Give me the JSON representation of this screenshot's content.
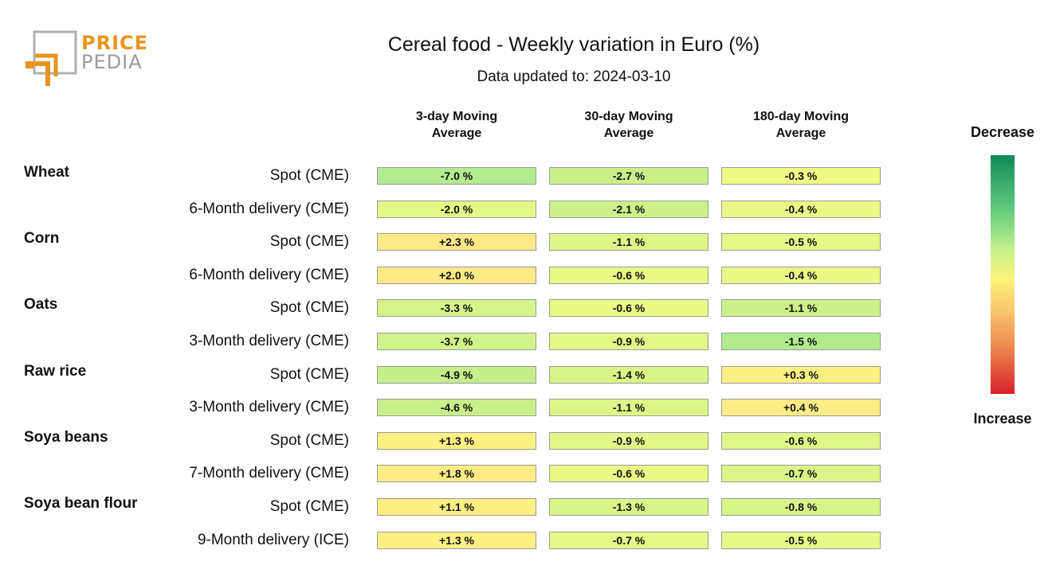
{
  "logo": {
    "line1": "PRICE",
    "line2": "PEDIA",
    "colors": {
      "orange": "#e8941e",
      "gray": "#9a9a9a"
    }
  },
  "title": "Cereal food - Weekly variation in Euro (%)",
  "subtitle": "Data updated to: 2024-03-10",
  "legend": {
    "top": "Decrease",
    "bottom": "Increase",
    "colors": [
      "#108a5a",
      "#5fc97c",
      "#c6f28a",
      "#fff27a",
      "#f7c36b",
      "#ee8a4f",
      "#d8202a"
    ]
  },
  "chart_data": {
    "type": "table",
    "title": "Cereal food - Weekly variation in Euro (%)",
    "subtitle": "Data updated to: 2024-03-10",
    "columns": [
      {
        "line1": "3-day Moving",
        "line2": "Average"
      },
      {
        "line1": "30-day Moving",
        "line2": "Average"
      },
      {
        "line1": "180-day Moving",
        "line2": "Average"
      }
    ],
    "groups": [
      {
        "name": "Wheat",
        "rows": [
          {
            "label": "Spot (CME)",
            "values": [
              "-7.0 %",
              "-2.7 %",
              "-0.3 %"
            ],
            "colors": [
              "#b2ec8e",
              "#c8f08a",
              "#eefa85"
            ]
          },
          {
            "label": "6-Month delivery (CME)",
            "values": [
              "-2.0 %",
              "-2.1 %",
              "-0.4 %"
            ],
            "colors": [
              "#e4f887",
              "#cdf189",
              "#eaf986"
            ]
          }
        ]
      },
      {
        "name": "Corn",
        "rows": [
          {
            "label": "Spot (CME)",
            "values": [
              "+2.3 %",
              "-1.1 %",
              "-0.5 %"
            ],
            "colors": [
              "#fde887",
              "#def688",
              "#e6f887"
            ]
          },
          {
            "label": "6-Month delivery (CME)",
            "values": [
              "+2.0 %",
              "-0.6 %",
              "-0.4 %"
            ],
            "colors": [
              "#fdea86",
              "#eafa86",
              "#eaf986"
            ]
          }
        ]
      },
      {
        "name": "Oats",
        "rows": [
          {
            "label": "Spot (CME)",
            "values": [
              "-3.3 %",
              "-0.6 %",
              "-1.1 %"
            ],
            "colors": [
              "#d6f489",
              "#eafa86",
              "#cdf189"
            ]
          },
          {
            "label": "3-Month delivery (CME)",
            "values": [
              "-3.7 %",
              "-0.9 %",
              "-1.5 %"
            ],
            "colors": [
              "#d2f389",
              "#e3f787",
              "#b0ec8e"
            ]
          }
        ]
      },
      {
        "name": "Raw rice",
        "rows": [
          {
            "label": "Spot (CME)",
            "values": [
              "-4.9 %",
              "-1.4 %",
              "+0.3 %"
            ],
            "colors": [
              "#c4ef8b",
              "#d9f588",
              "#fdf083"
            ]
          },
          {
            "label": "3-Month delivery (CME)",
            "values": [
              "-4.6 %",
              "-1.1 %",
              "+0.4 %"
            ],
            "colors": [
              "#c8f08a",
              "#def688",
              "#fdec86"
            ]
          }
        ]
      },
      {
        "name": "Soya beans",
        "rows": [
          {
            "label": "Spot (CME)",
            "values": [
              "+1.3 %",
              "-0.9 %",
              "-0.6 %"
            ],
            "colors": [
              "#fdf083",
              "#e3f787",
              "#dff688"
            ]
          },
          {
            "label": "7-Month delivery (CME)",
            "values": [
              "+1.8 %",
              "-0.6 %",
              "-0.7 %"
            ],
            "colors": [
              "#fdec86",
              "#eafa86",
              "#dbf588"
            ]
          }
        ]
      },
      {
        "name": "Soya bean flour",
        "rows": [
          {
            "label": "Spot (CME)",
            "values": [
              "+1.1 %",
              "-1.3 %",
              "-0.8 %"
            ],
            "colors": [
              "#fdf083",
              "#d9f588",
              "#d9f588"
            ]
          },
          {
            "label": "9-Month delivery (ICE)",
            "values": [
              "+1.3 %",
              "-0.7 %",
              "-0.5 %"
            ],
            "colors": [
              "#fdf083",
              "#e6f887",
              "#e6f887"
            ]
          }
        ]
      }
    ]
  }
}
